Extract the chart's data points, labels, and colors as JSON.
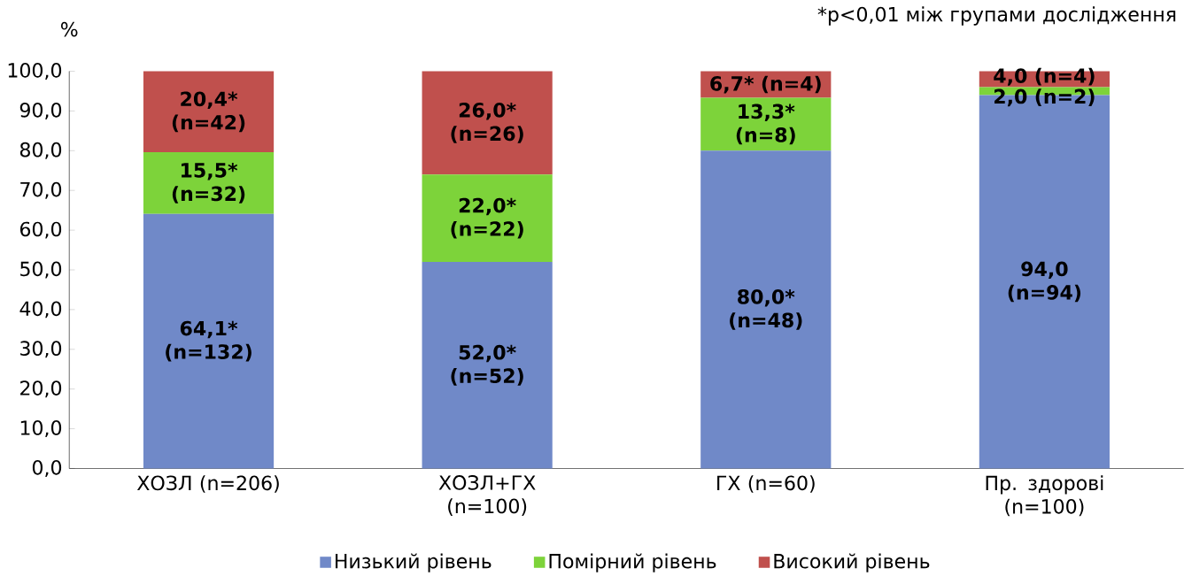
{
  "chart_data": {
    "type": "bar",
    "stacked": true,
    "ylabel": "%",
    "annotations": [
      "*p<0,01 між групами дослідження"
    ],
    "categories": [
      "ХОЗЛ (n=206)",
      "ХОЗЛ+ГХ (n=100)",
      "ГХ (n=60)",
      "Пр. здорові (n=100)"
    ],
    "series": [
      {
        "name": "Низький рівень",
        "color": "#7089c8",
        "values": [
          64.1,
          52.0,
          80.0,
          94.0
        ],
        "value_labels": [
          "64,1* (n=132)",
          "52,0* (n=52)",
          "80,0* (n=48)",
          "94,0 (n=94)"
        ]
      },
      {
        "name": "Помірний рівень",
        "color": "#7dd33a",
        "values": [
          15.5,
          22.0,
          13.3,
          2.0
        ],
        "value_labels": [
          "15,5* (n=32)",
          "22,0* (n=22)",
          "13,3* (n=8)",
          "2,0 (n=2)"
        ]
      },
      {
        "name": "Високий рівень",
        "color": "#c0504d",
        "values": [
          20.4,
          26.0,
          6.7,
          4.0
        ],
        "value_labels": [
          "20,4* (n=42)",
          "26,0* (n=26)",
          "6,7* (n=4)",
          "4,0 (n=4)"
        ]
      }
    ],
    "ylim": [
      0,
      100
    ],
    "yticks": [
      {
        "value": 0,
        "label": "0,0"
      },
      {
        "value": 10,
        "label": "10,0"
      },
      {
        "value": 20,
        "label": "20,0"
      },
      {
        "value": 30,
        "label": "30,0"
      },
      {
        "value": 40,
        "label": "40,0"
      },
      {
        "value": 50,
        "label": "50,0"
      },
      {
        "value": 60,
        "label": "60,0"
      },
      {
        "value": 70,
        "label": "70,0"
      },
      {
        "value": 80,
        "label": "80,0"
      },
      {
        "value": 90,
        "label": "90,0"
      },
      {
        "value": 100,
        "label": "100,0"
      }
    ],
    "legend": "bottom"
  }
}
